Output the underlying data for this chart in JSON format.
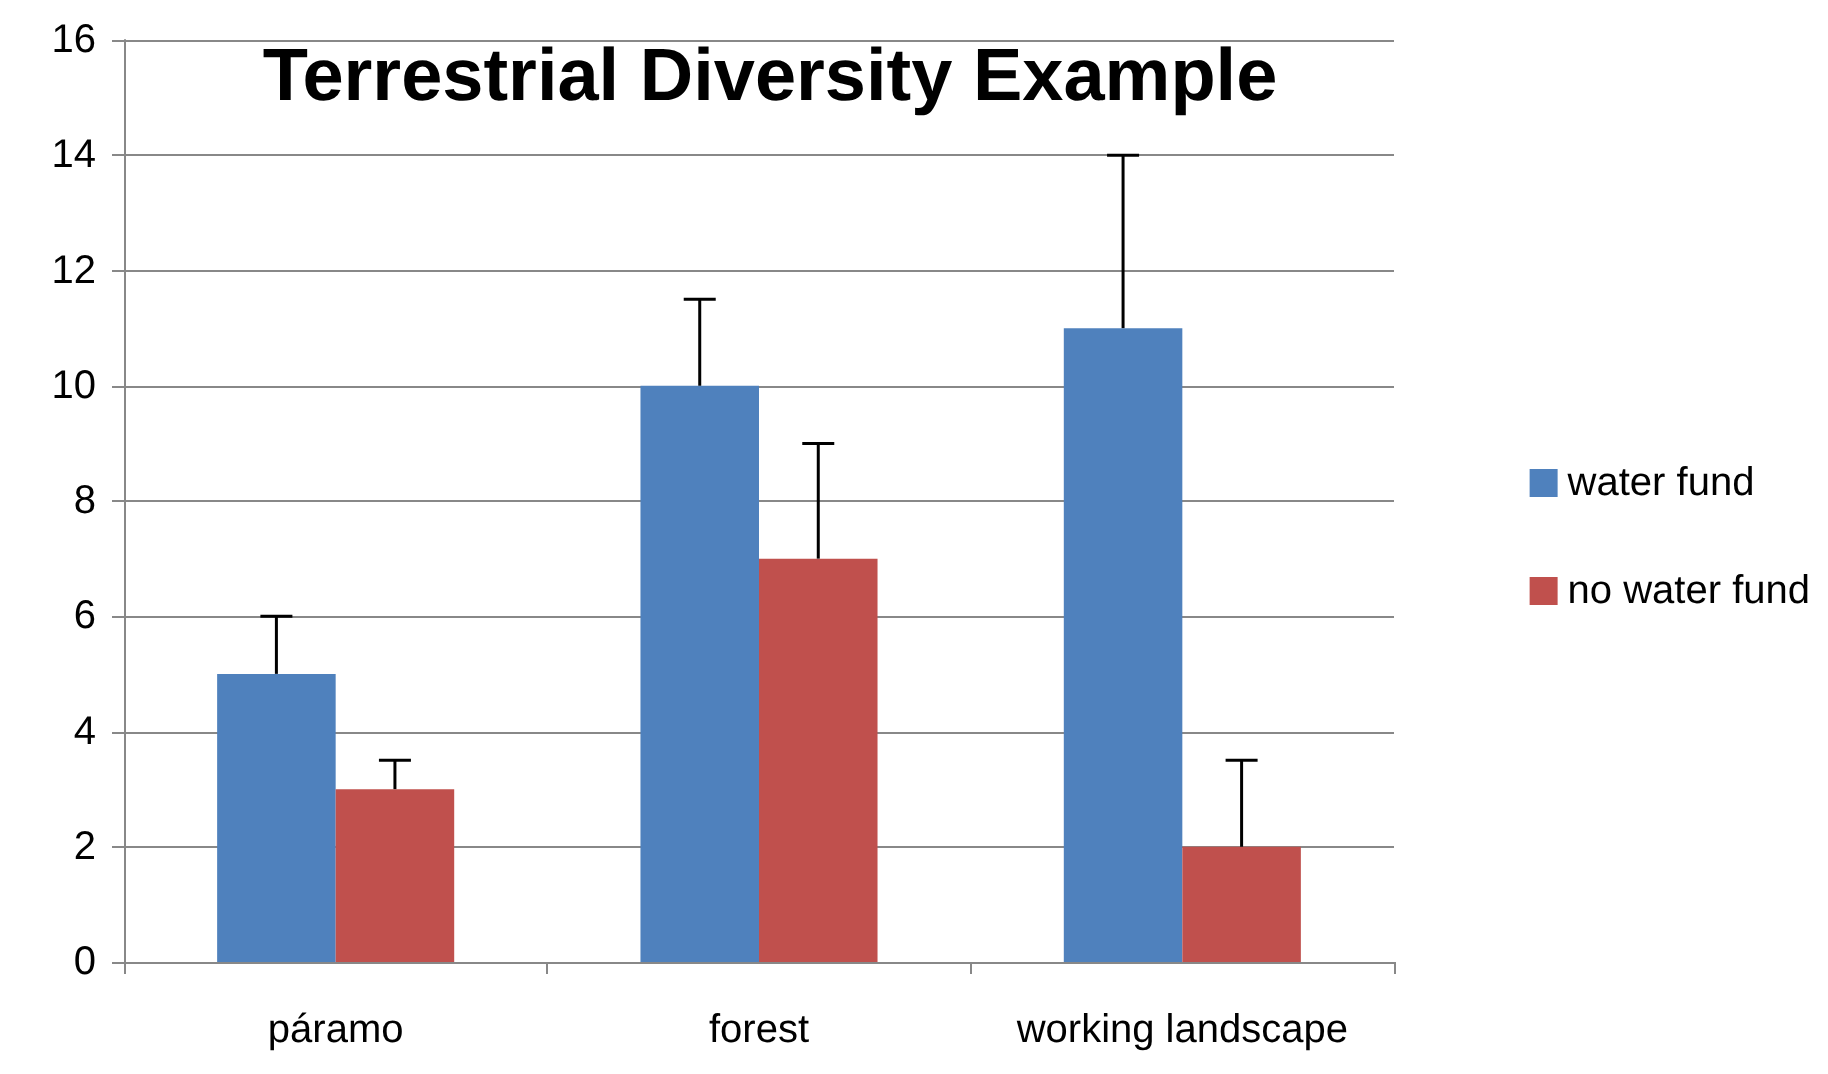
{
  "chart_data": {
    "type": "bar",
    "title": "Terrestrial Diversity Example",
    "categories": [
      "páramo",
      "forest",
      "working landscape"
    ],
    "series": [
      {
        "name": "water fund",
        "color": "#4f81bd",
        "values": [
          5,
          10,
          11
        ],
        "errors": [
          [
            5,
            6
          ],
          [
            10,
            11.5
          ],
          [
            11,
            14
          ]
        ]
      },
      {
        "name": "no water fund",
        "color": "#c0504d",
        "values": [
          3,
          7,
          2
        ],
        "errors": [
          [
            3,
            3.5
          ],
          [
            7,
            9
          ],
          [
            2,
            3.5
          ]
        ]
      }
    ],
    "ylim": [
      0,
      16
    ],
    "yticks": [
      0,
      2,
      4,
      6,
      8,
      10,
      12,
      14,
      16
    ],
    "grid": "y",
    "legend": "right"
  }
}
